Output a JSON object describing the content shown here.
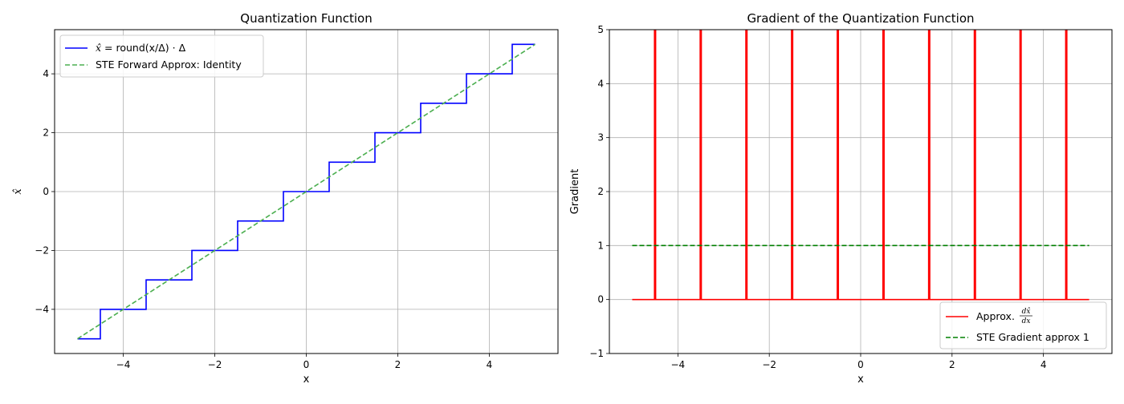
{
  "chart_data": [
    {
      "type": "line",
      "title": "Quantization Function",
      "xlabel": "x",
      "ylabel": "x̂",
      "xlim": [
        -5.5,
        5.5
      ],
      "ylim": [
        -5.5,
        5.5
      ],
      "xticks": [
        -4,
        -2,
        0,
        2,
        4
      ],
      "yticks": [
        -4,
        -2,
        0,
        2,
        4
      ],
      "grid": true,
      "legend_position": "top-left",
      "series": [
        {
          "name": "x̂ = round(x/Δ) · Δ",
          "style": "solid",
          "color": "#0000ff",
          "x": [
            -5,
            -4.5,
            -4.5,
            -3.5,
            -3.5,
            -2.5,
            -2.5,
            -1.5,
            -1.5,
            -0.5,
            -0.5,
            0.5,
            0.5,
            1.5,
            1.5,
            2.5,
            2.5,
            3.5,
            3.5,
            4.5,
            4.5,
            5
          ],
          "y": [
            -5,
            -5,
            -4,
            -4,
            -3,
            -3,
            -2,
            -2,
            -1,
            -1,
            0,
            0,
            1,
            1,
            2,
            2,
            3,
            3,
            4,
            4,
            5,
            5
          ]
        },
        {
          "name": "STE Forward Approx: Identity",
          "style": "dashed",
          "color": "#4caf50",
          "x": [
            -5,
            5
          ],
          "y": [
            -5,
            5
          ]
        }
      ]
    },
    {
      "type": "line",
      "title": "Gradient of the Quantization Function",
      "xlabel": "x",
      "ylabel": "Gradient",
      "xlim": [
        -5.5,
        5.5
      ],
      "ylim": [
        -1,
        5
      ],
      "xticks": [
        -4,
        -2,
        0,
        2,
        4
      ],
      "yticks": [
        -1,
        0,
        1,
        2,
        3,
        4,
        5
      ],
      "grid": true,
      "legend_position": "bottom-right",
      "series": [
        {
          "name": "Approx. dx̂/dx",
          "style": "solid",
          "color": "#ff0000",
          "baseline": 0,
          "x_range": [
            -5,
            5
          ],
          "spike_x": [
            -4.5,
            -3.5,
            -2.5,
            -1.5,
            -0.5,
            0.5,
            1.5,
            2.5,
            3.5,
            4.5
          ]
        },
        {
          "name": "STE Gradient approx 1",
          "style": "dashed",
          "color": "#008000",
          "x": [
            -5,
            5
          ],
          "y": [
            1,
            1
          ]
        }
      ]
    }
  ],
  "legend1": {
    "entry1_prefix": "x̂",
    "entry1_rest": " = round(x/Δ) · Δ",
    "entry2": "STE Forward Approx: Identity"
  },
  "legend2": {
    "entry1_prefix": "Approx. ",
    "entry1_num": "dx̂",
    "entry1_den": "dx",
    "entry2": "STE Gradient approx 1"
  }
}
